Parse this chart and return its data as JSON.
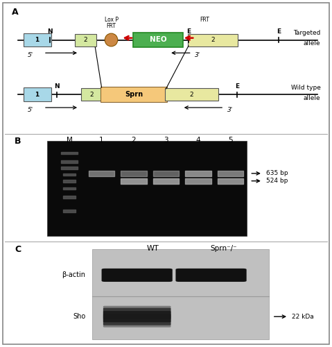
{
  "bg_color": "#ffffff",
  "panel_a": {
    "label": "A",
    "exon1_color": "#a8d8e8",
    "exon2_color": "#d4e8a0",
    "exon2r_color": "#e8e8a0",
    "neo_color": "#4caf50",
    "sprn_color": "#f5c87a",
    "loxp_color": "#cc8844",
    "arrow_color": "#cc0000"
  },
  "panel_b": {
    "label": "B",
    "lane_labels": [
      "M",
      "1",
      "2",
      "3",
      "4",
      "5"
    ],
    "band_635_label": "635 bp",
    "band_524_label": "524 bp"
  },
  "panel_c": {
    "label": "C",
    "wt_label": "WT",
    "ko_label": "Sprn⁻/⁻",
    "bactin_label": "β-actin",
    "sho_label": "Sho",
    "kda_label": "22 kDa"
  }
}
